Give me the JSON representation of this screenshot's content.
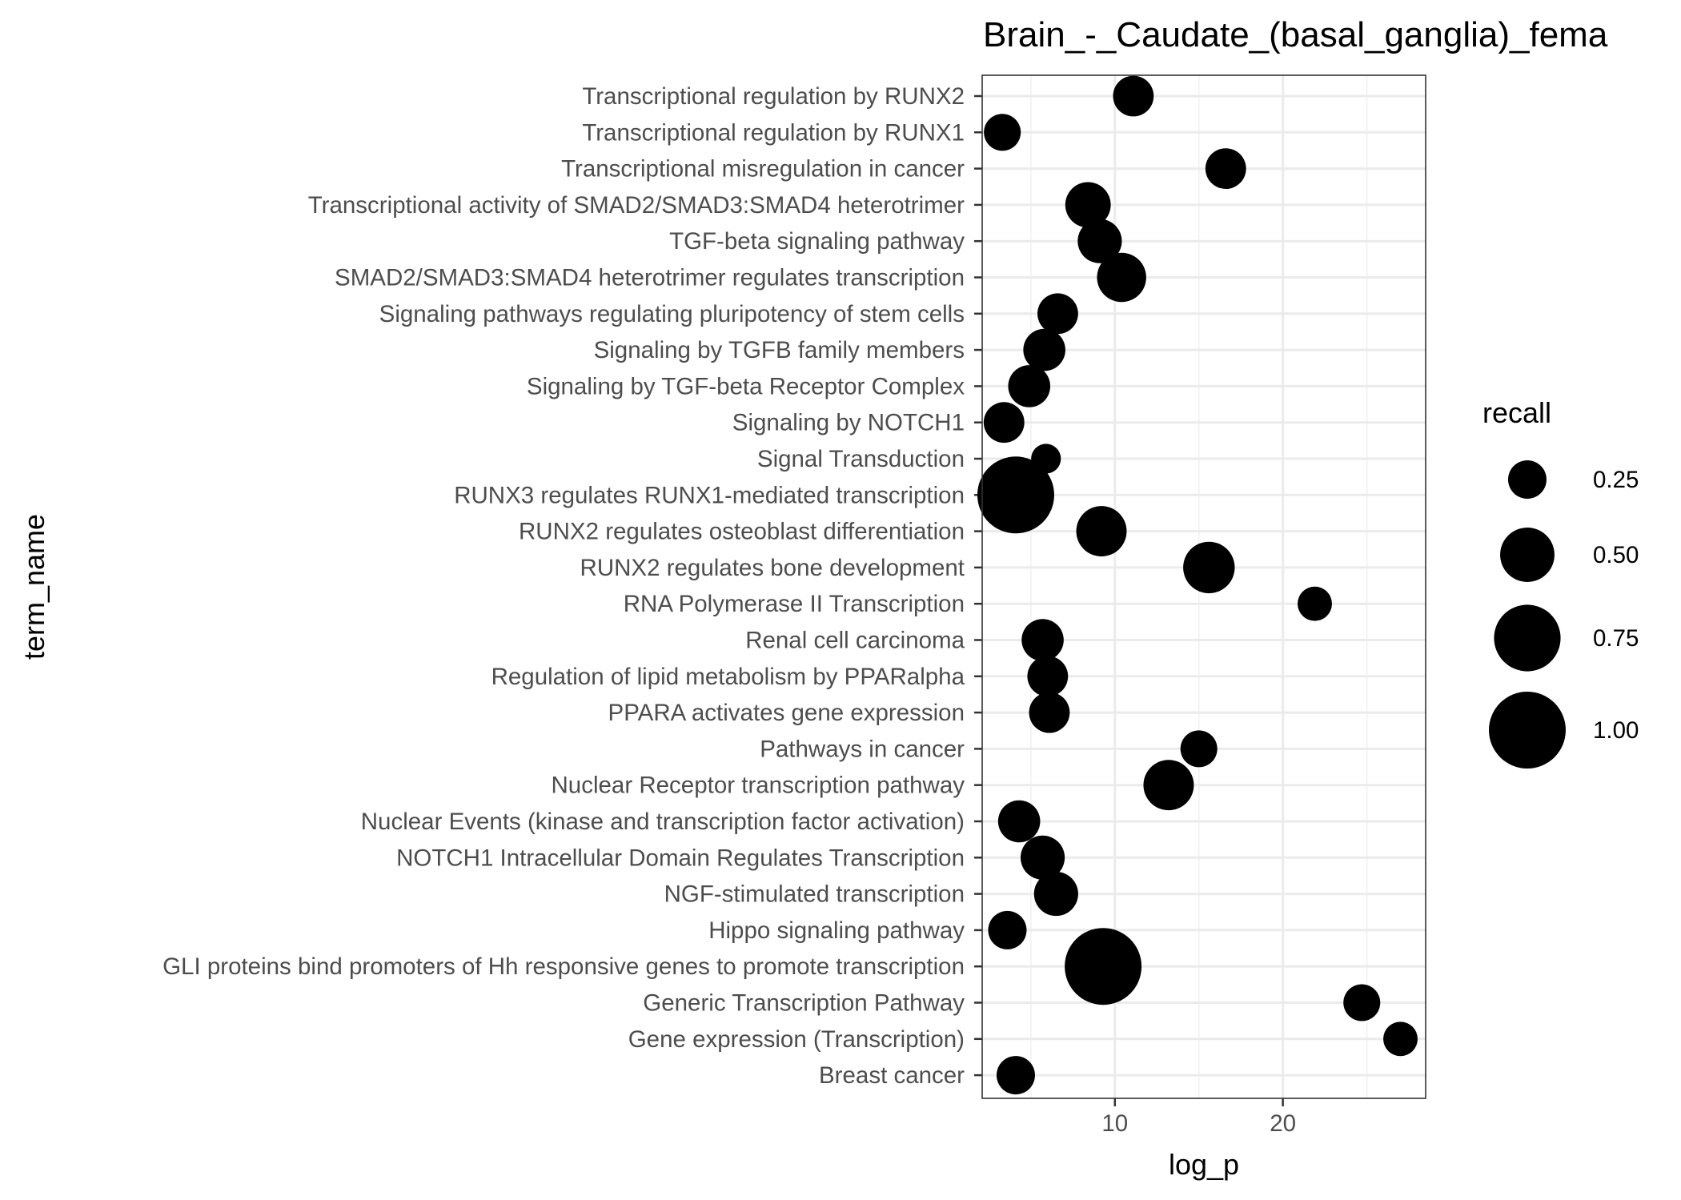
{
  "chart_data": {
    "type": "scatter",
    "title": "Brain_-_Caudate_(basal_ganglia)_fema",
    "xlabel": "log_p",
    "ylabel": "term_name",
    "xlim": [
      2.1,
      28.5
    ],
    "x_ticks": [
      "10",
      "20"
    ],
    "x_tick_values": [
      10,
      20
    ],
    "grid": true,
    "legend": {
      "title": "recall",
      "placement": "right",
      "entries": [
        {
          "label": "0.25",
          "recall": 0.25
        },
        {
          "label": "0.50",
          "recall": 0.5
        },
        {
          "label": "0.75",
          "recall": 0.75
        },
        {
          "label": "1.00",
          "recall": 1.0
        }
      ]
    },
    "marker_color": "#000000",
    "points": [
      {
        "term": "Transcriptional regulation by RUNX2",
        "log_p": 11.1,
        "recall": 0.28
      },
      {
        "term": "Transcriptional regulation by RUNX1",
        "log_p": 3.3,
        "recall": 0.23
      },
      {
        "term": "Transcriptional misregulation in cancer",
        "log_p": 16.6,
        "recall": 0.28
      },
      {
        "term": "Transcriptional activity of SMAD2/SMAD3:SMAD4 heterotrimer",
        "log_p": 8.4,
        "recall": 0.35
      },
      {
        "term": "TGF-beta signaling pathway",
        "log_p": 9.1,
        "recall": 0.33
      },
      {
        "term": "SMAD2/SMAD3:SMAD4 heterotrimer regulates transcription",
        "log_p": 10.4,
        "recall": 0.41
      },
      {
        "term": "Signaling pathways regulating pluripotency of stem cells",
        "log_p": 6.6,
        "recall": 0.28
      },
      {
        "term": "Signaling by TGFB family members",
        "log_p": 5.8,
        "recall": 0.3
      },
      {
        "term": "Signaling by TGF-beta Receptor Complex",
        "log_p": 4.9,
        "recall": 0.3
      },
      {
        "term": "Signaling by NOTCH1",
        "log_p": 3.4,
        "recall": 0.28
      },
      {
        "term": "Signal Transduction",
        "log_p": 5.9,
        "recall": 0.15
      },
      {
        "term": "RUNX3 regulates RUNX1-mediated transcription",
        "log_p": 4.1,
        "recall": 1.0
      },
      {
        "term": "RUNX2 regulates osteoblast differentiation",
        "log_p": 9.2,
        "recall": 0.43
      },
      {
        "term": "RUNX2 regulates bone development",
        "log_p": 15.6,
        "recall": 0.45
      },
      {
        "term": "RNA Polymerase II Transcription",
        "log_p": 21.9,
        "recall": 0.2
      },
      {
        "term": "Renal cell carcinoma",
        "log_p": 5.7,
        "recall": 0.3
      },
      {
        "term": "Regulation of lipid metabolism by PPARalpha",
        "log_p": 6.0,
        "recall": 0.28
      },
      {
        "term": "PPARA activates gene expression",
        "log_p": 6.1,
        "recall": 0.28
      },
      {
        "term": "Pathways in cancer",
        "log_p": 15.0,
        "recall": 0.23
      },
      {
        "term": "Nuclear Receptor transcription pathway",
        "log_p": 13.2,
        "recall": 0.43
      },
      {
        "term": "Nuclear Events (kinase and transcription factor activation)",
        "log_p": 4.3,
        "recall": 0.3
      },
      {
        "term": "NOTCH1 Intracellular Domain Regulates Transcription",
        "log_p": 5.7,
        "recall": 0.33
      },
      {
        "term": "NGF-stimulated transcription",
        "log_p": 6.5,
        "recall": 0.33
      },
      {
        "term": "Hippo signaling pathway",
        "log_p": 3.6,
        "recall": 0.25
      },
      {
        "term": "GLI proteins bind promoters of Hh responsive genes to promote transcription",
        "log_p": 9.3,
        "recall": 1.0
      },
      {
        "term": "Generic Transcription Pathway",
        "log_p": 24.7,
        "recall": 0.23
      },
      {
        "term": "Gene expression (Transcription)",
        "log_p": 27.0,
        "recall": 0.2
      },
      {
        "term": "Breast cancer",
        "log_p": 4.1,
        "recall": 0.25
      }
    ]
  }
}
